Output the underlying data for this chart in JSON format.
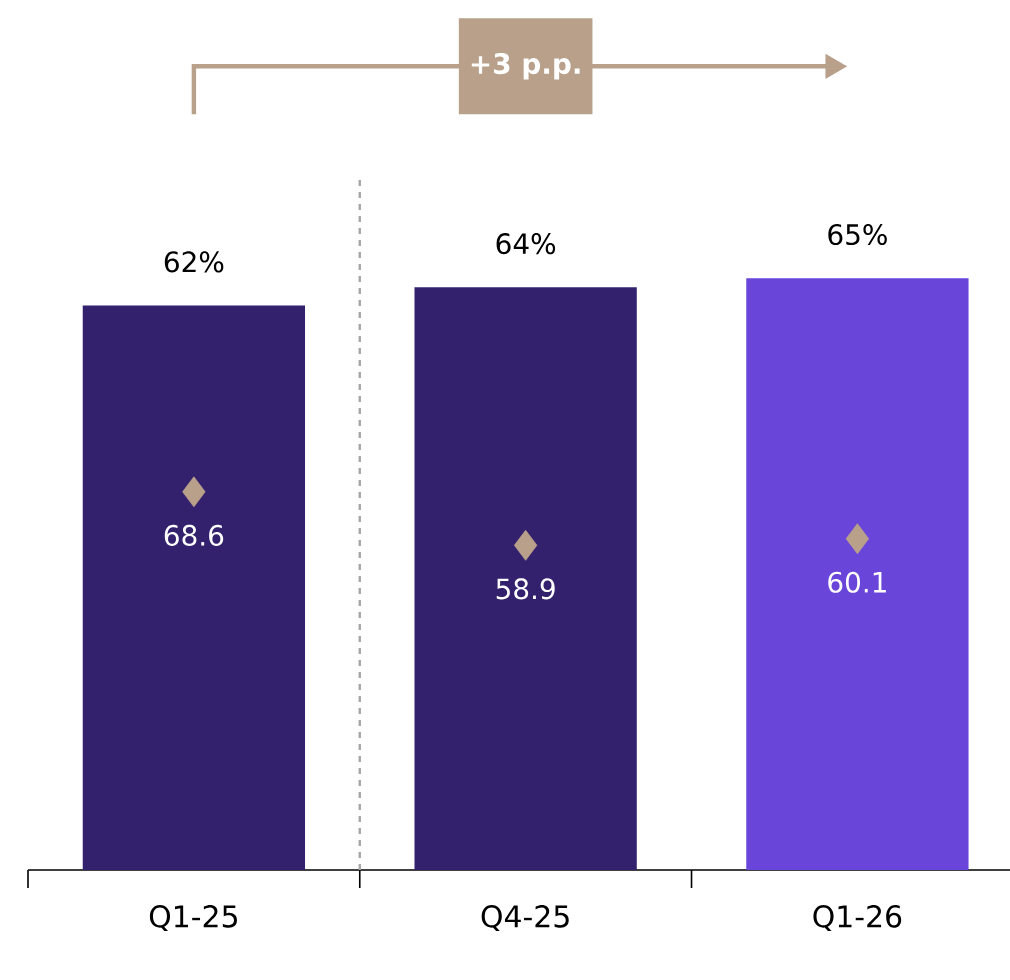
{
  "chart_data": {
    "type": "bar",
    "categories": [
      "Q1-25",
      "Q4-25",
      "Q1-26"
    ],
    "series": [
      {
        "colors": [
          "#33216e",
          "#33216e",
          "#6a45d9"
        ],
        "values": [
          62,
          64,
          65
        ],
        "value_labels": [
          "62%",
          "64%",
          "65%"
        ]
      },
      {
        "type": "scatter",
        "axis": "y2",
        "color": "#b9a08a",
        "marker": "diamond",
        "values": [
          68.6,
          58.9,
          60.1
        ],
        "value_labels": [
          "68.6",
          "58.9",
          "60.1"
        ]
      }
    ],
    "tick_labels": "x",
    "annotations": [
      "+3 p.p."
    ]
  }
}
